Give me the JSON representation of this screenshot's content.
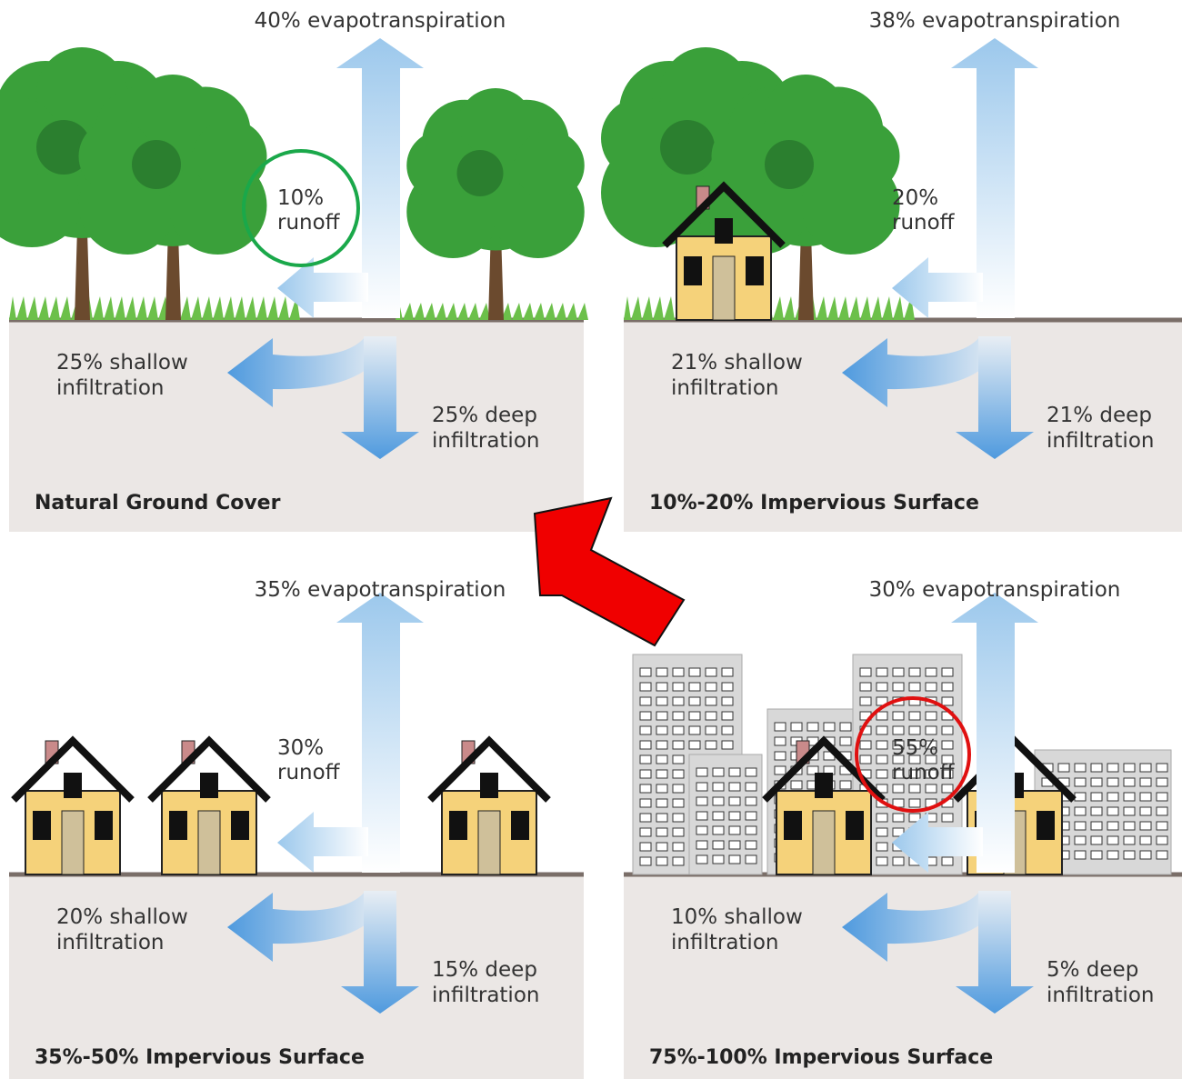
{
  "panels": [
    {
      "title": "Natural Ground Cover",
      "evapotranspiration": "40% evapotranspiration",
      "runoff": [
        "10%",
        "runoff"
      ],
      "shallow": [
        "25% shallow",
        "infiltration"
      ],
      "deep": [
        "25% deep",
        "infiltration"
      ]
    },
    {
      "title": "10%-20% Impervious Surface",
      "evapotranspiration": "38% evapotranspiration",
      "runoff": [
        "20%",
        "runoff"
      ],
      "shallow": [
        "21% shallow",
        "infiltration"
      ],
      "deep": [
        "21% deep",
        "infiltration"
      ]
    },
    {
      "title": "35%-50% Impervious Surface",
      "evapotranspiration": "35% evapotranspiration",
      "runoff": [
        "30%",
        "runoff"
      ],
      "shallow": [
        "20% shallow",
        "infiltration"
      ],
      "deep": [
        "15% deep",
        "infiltration"
      ]
    },
    {
      "title": "75%-100% Impervious Surface",
      "evapotranspiration": "30% evapotranspiration",
      "runoff": [
        "55%",
        "runoff"
      ],
      "shallow": [
        "10% shallow",
        "infiltration"
      ],
      "deep": [
        "5% deep",
        "infiltration"
      ]
    }
  ]
}
